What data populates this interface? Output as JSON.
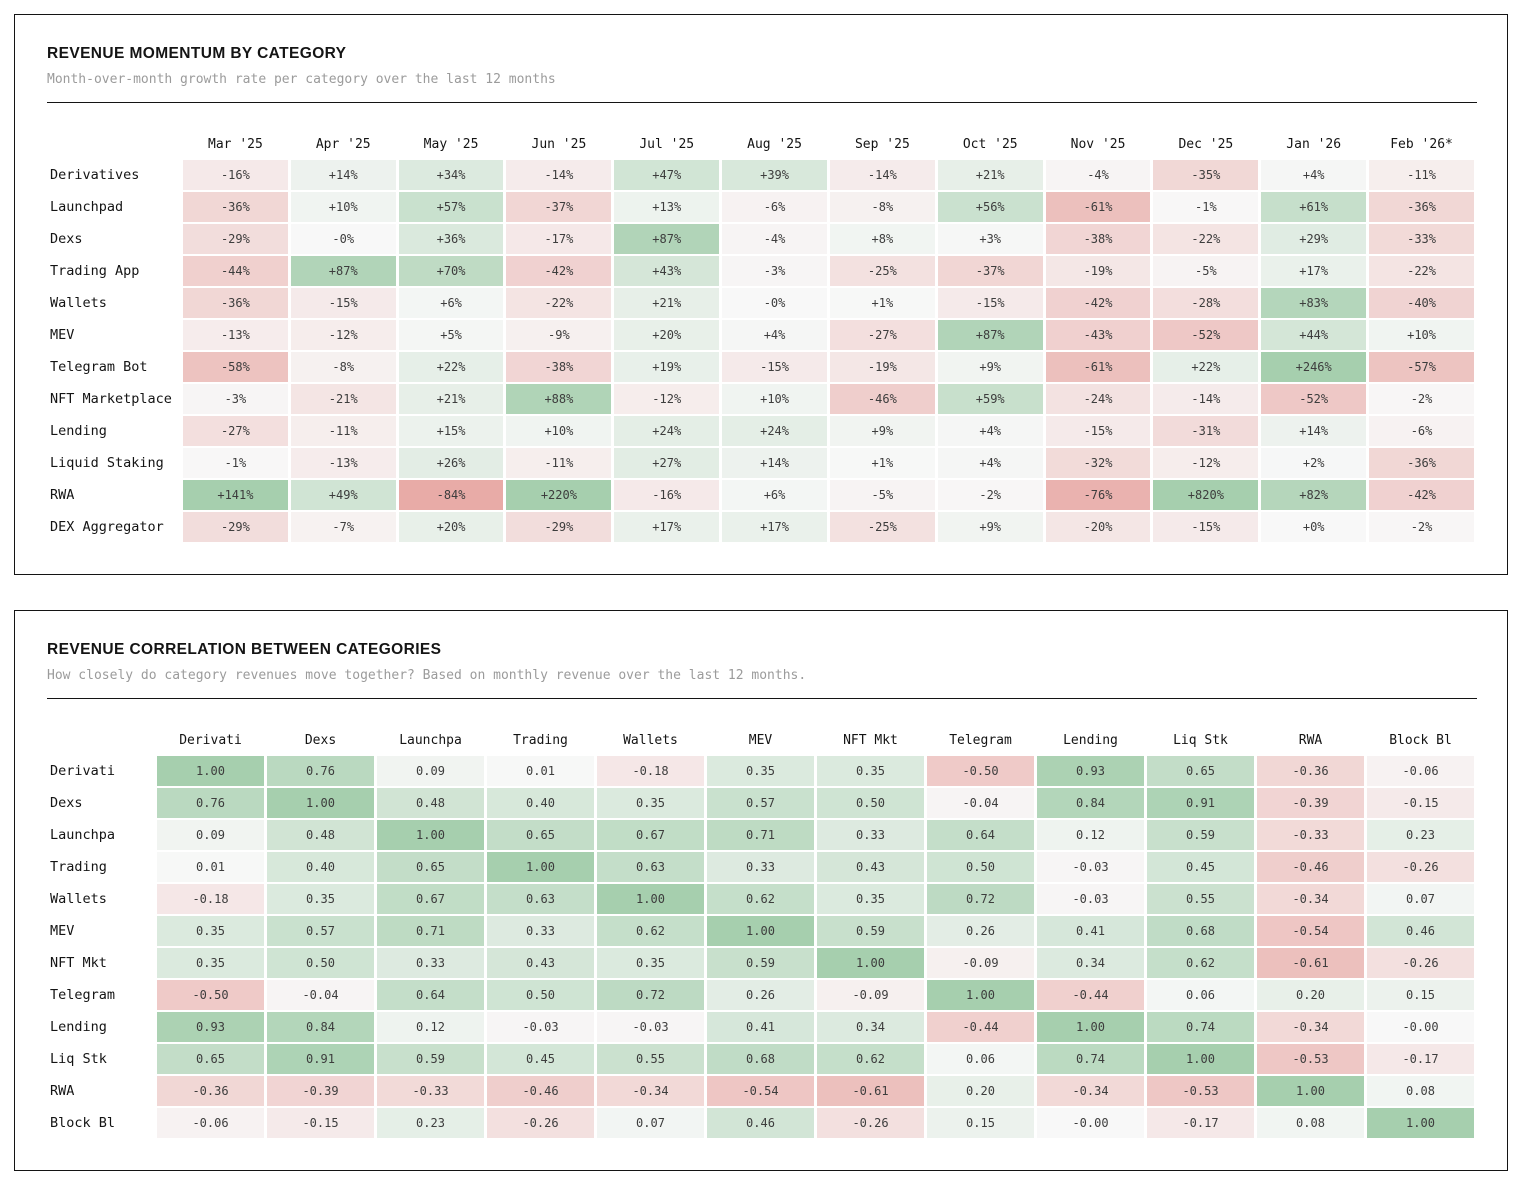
{
  "chart_data": [
    {
      "type": "heatmap",
      "title": "REVENUE MOMENTUM BY CATEGORY",
      "subtitle": "Month-over-month growth rate per category over the last 12 months",
      "columns": [
        "Mar '25",
        "Apr '25",
        "May '25",
        "Jun '25",
        "Jul '25",
        "Aug '25",
        "Sep '25",
        "Oct '25",
        "Nov '25",
        "Dec '25",
        "Jan '26",
        "Feb '26*"
      ],
      "rows": [
        "Derivatives",
        "Launchpad",
        "Dexs",
        "Trading App",
        "Wallets",
        "MEV",
        "Telegram Bot",
        "NFT Marketplace",
        "Lending",
        "Liquid Staking",
        "RWA",
        "DEX Aggregator"
      ],
      "values": [
        [
          "-16%",
          "+14%",
          "+34%",
          "-14%",
          "+47%",
          "+39%",
          "-14%",
          "+21%",
          "-4%",
          "-35%",
          "+4%",
          "-11%"
        ],
        [
          "-36%",
          "+10%",
          "+57%",
          "-37%",
          "+13%",
          "-6%",
          "-8%",
          "+56%",
          "-61%",
          "-1%",
          "+61%",
          "-36%"
        ],
        [
          "-29%",
          "-0%",
          "+36%",
          "-17%",
          "+87%",
          "-4%",
          "+8%",
          "+3%",
          "-38%",
          "-22%",
          "+29%",
          "-33%"
        ],
        [
          "-44%",
          "+87%",
          "+70%",
          "-42%",
          "+43%",
          "-3%",
          "-25%",
          "-37%",
          "-19%",
          "-5%",
          "+17%",
          "-22%"
        ],
        [
          "-36%",
          "-15%",
          "+6%",
          "-22%",
          "+21%",
          "-0%",
          "+1%",
          "-15%",
          "-42%",
          "-28%",
          "+83%",
          "-40%"
        ],
        [
          "-13%",
          "-12%",
          "+5%",
          "-9%",
          "+20%",
          "+4%",
          "-27%",
          "+87%",
          "-43%",
          "-52%",
          "+44%",
          "+10%"
        ],
        [
          "-58%",
          "-8%",
          "+22%",
          "-38%",
          "+19%",
          "-15%",
          "-19%",
          "+9%",
          "-61%",
          "+22%",
          "+246%",
          "-57%"
        ],
        [
          "-3%",
          "-21%",
          "+21%",
          "+88%",
          "-12%",
          "+10%",
          "-46%",
          "+59%",
          "-24%",
          "-14%",
          "-52%",
          "-2%"
        ],
        [
          "-27%",
          "-11%",
          "+15%",
          "+10%",
          "+24%",
          "+24%",
          "+9%",
          "+4%",
          "-15%",
          "-31%",
          "+14%",
          "-6%"
        ],
        [
          "-1%",
          "-13%",
          "+26%",
          "-11%",
          "+27%",
          "+14%",
          "+1%",
          "+4%",
          "-32%",
          "-12%",
          "+2%",
          "-36%"
        ],
        [
          "+141%",
          "+49%",
          "-84%",
          "+220%",
          "-16%",
          "+6%",
          "-5%",
          "-2%",
          "-76%",
          "+820%",
          "+82%",
          "-42%"
        ],
        [
          "-29%",
          "-7%",
          "+20%",
          "-29%",
          "+17%",
          "+17%",
          "-25%",
          "+9%",
          "-20%",
          "-15%",
          "+0%",
          "-2%"
        ]
      ],
      "color_scale": {
        "max_abs": 100,
        "negative": "#e59c98",
        "neutral": "#f8f8f8",
        "positive": "#a6cfae"
      },
      "legend_position": "none",
      "grid": false
    },
    {
      "type": "heatmap",
      "title": "REVENUE CORRELATION BETWEEN CATEGORIES",
      "subtitle": "How closely do category revenues move together? Based on monthly revenue over the last 12 months.",
      "columns": [
        "Derivati",
        "Dexs",
        "Launchpa",
        "Trading",
        "Wallets",
        "MEV",
        "NFT Mkt",
        "Telegram",
        "Lending",
        "Liq Stk",
        "RWA",
        "Block Bl"
      ],
      "rows": [
        "Derivati",
        "Dexs",
        "Launchpa",
        "Trading",
        "Wallets",
        "MEV",
        "NFT Mkt",
        "Telegram",
        "Lending",
        "Liq Stk",
        "RWA",
        "Block Bl"
      ],
      "values": [
        [
          "1.00",
          "0.76",
          "0.09",
          "0.01",
          "-0.18",
          "0.35",
          "0.35",
          "-0.50",
          "0.93",
          "0.65",
          "-0.36",
          "-0.06"
        ],
        [
          "0.76",
          "1.00",
          "0.48",
          "0.40",
          "0.35",
          "0.57",
          "0.50",
          "-0.04",
          "0.84",
          "0.91",
          "-0.39",
          "-0.15"
        ],
        [
          "0.09",
          "0.48",
          "1.00",
          "0.65",
          "0.67",
          "0.71",
          "0.33",
          "0.64",
          "0.12",
          "0.59",
          "-0.33",
          "0.23"
        ],
        [
          "0.01",
          "0.40",
          "0.65",
          "1.00",
          "0.63",
          "0.33",
          "0.43",
          "0.50",
          "-0.03",
          "0.45",
          "-0.46",
          "-0.26"
        ],
        [
          "-0.18",
          "0.35",
          "0.67",
          "0.63",
          "1.00",
          "0.62",
          "0.35",
          "0.72",
          "-0.03",
          "0.55",
          "-0.34",
          "0.07"
        ],
        [
          "0.35",
          "0.57",
          "0.71",
          "0.33",
          "0.62",
          "1.00",
          "0.59",
          "0.26",
          "0.41",
          "0.68",
          "-0.54",
          "0.46"
        ],
        [
          "0.35",
          "0.50",
          "0.33",
          "0.43",
          "0.35",
          "0.59",
          "1.00",
          "-0.09",
          "0.34",
          "0.62",
          "-0.61",
          "-0.26"
        ],
        [
          "-0.50",
          "-0.04",
          "0.64",
          "0.50",
          "0.72",
          "0.26",
          "-0.09",
          "1.00",
          "-0.44",
          "0.06",
          "0.20",
          "0.15"
        ],
        [
          "0.93",
          "0.84",
          "0.12",
          "-0.03",
          "-0.03",
          "0.41",
          "0.34",
          "-0.44",
          "1.00",
          "0.74",
          "-0.34",
          "-0.00"
        ],
        [
          "0.65",
          "0.91",
          "0.59",
          "0.45",
          "0.55",
          "0.68",
          "0.62",
          "0.06",
          "0.74",
          "1.00",
          "-0.53",
          "-0.17"
        ],
        [
          "-0.36",
          "-0.39",
          "-0.33",
          "-0.46",
          "-0.34",
          "-0.54",
          "-0.61",
          "0.20",
          "-0.34",
          "-0.53",
          "1.00",
          "0.08"
        ],
        [
          "-0.06",
          "-0.15",
          "0.23",
          "-0.26",
          "0.07",
          "0.46",
          "-0.26",
          "0.15",
          "-0.00",
          "-0.17",
          "0.08",
          "1.00"
        ]
      ],
      "color_scale": {
        "max_abs": 1,
        "negative": "#e59c98",
        "neutral": "#f8f8f8",
        "positive": "#a6cfae"
      },
      "legend_position": "none",
      "grid": false
    }
  ]
}
